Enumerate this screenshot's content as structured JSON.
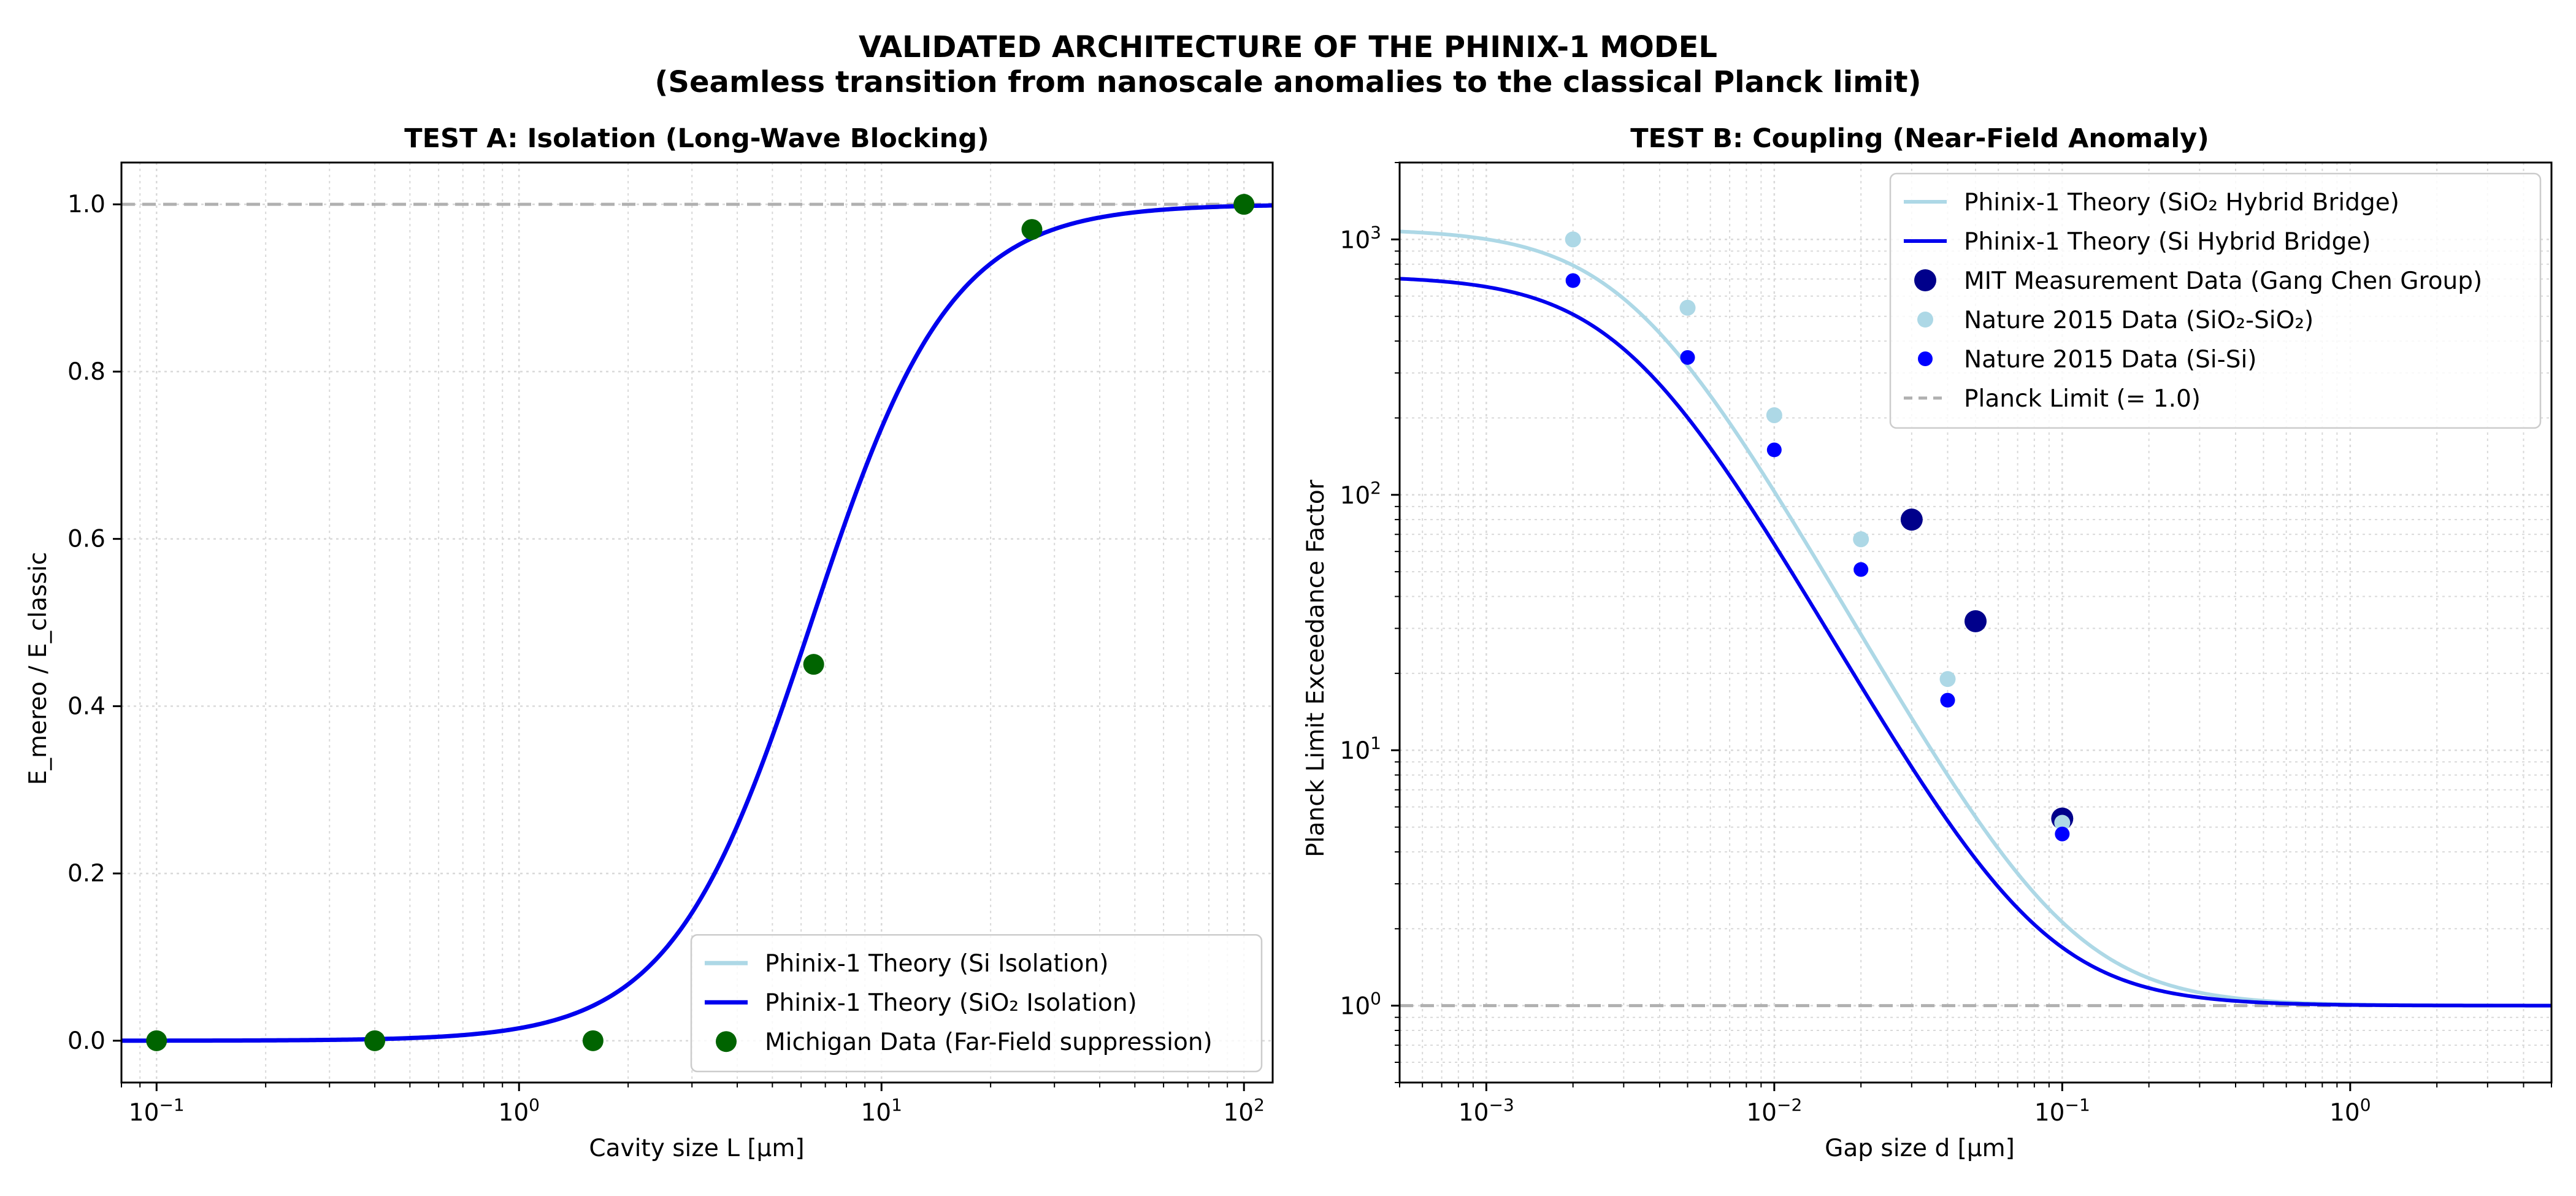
{
  "figure": {
    "title_line1": "VALIDATED ARCHITECTURE OF THE PHINIX-1 MODEL",
    "title_line2": "(Seamless transition from nanoscale anomalies to the classical Planck limit)"
  },
  "chart_data": [
    {
      "type": "line",
      "title": "TEST A: Isolation (Long-Wave Blocking)",
      "xlabel": "Cavity size L [μm]",
      "ylabel": "E_mereo / E_classic",
      "xscale": "log",
      "xlim": [
        0.08,
        120
      ],
      "ylim": [
        -0.05,
        1.05
      ],
      "xticks": [
        {
          "v": 0.1,
          "base": "10",
          "exp": "−1"
        },
        {
          "v": 1,
          "base": "10",
          "exp": "0"
        },
        {
          "v": 10,
          "base": "10",
          "exp": "1"
        },
        {
          "v": 100,
          "base": "10",
          "exp": "2"
        }
      ],
      "yticks": [
        {
          "v": 0.0,
          "label": "0.0"
        },
        {
          "v": 0.2,
          "label": "0.2"
        },
        {
          "v": 0.4,
          "label": "0.4"
        },
        {
          "v": 0.6,
          "label": "0.6"
        },
        {
          "v": 0.8,
          "label": "0.8"
        },
        {
          "v": 1.0,
          "label": "1.0"
        }
      ],
      "grid": true,
      "reference_line": {
        "y": 1.0,
        "color": "#b0b0b0",
        "style": "dashed"
      },
      "legend_position": "lower-right",
      "series": [
        {
          "name": "Phinix-1 Theory (Si Isolation)",
          "kind": "line",
          "color": "#add8e6",
          "width": 7,
          "logistic": {
            "center": 6.4,
            "steepness": 5.2
          }
        },
        {
          "name": "Phinix-1 Theory (SiO₂ Isolation)",
          "kind": "line",
          "color": "#0000ee",
          "width": 7,
          "logistic": {
            "center": 6.4,
            "steepness": 5.2
          }
        },
        {
          "name": "Michigan Data (Far-Field suppression)",
          "kind": "scatter",
          "color": "#006400",
          "radius": 17,
          "x": [
            0.1,
            0.4,
            1.6,
            6.5,
            26,
            100
          ],
          "y": [
            0.0,
            0.0,
            0.0,
            0.45,
            0.97,
            1.0
          ]
        }
      ]
    },
    {
      "type": "line",
      "title": "TEST B: Coupling (Near-Field Anomaly)",
      "xlabel": "Gap size d [μm]",
      "ylabel": "Planck Limit Exceedance Factor",
      "xscale": "log",
      "yscale": "log",
      "xlim": [
        0.0005,
        5
      ],
      "ylim": [
        0.5,
        2000
      ],
      "xticks": [
        {
          "v": 0.001,
          "base": "10",
          "exp": "−3"
        },
        {
          "v": 0.01,
          "base": "10",
          "exp": "−2"
        },
        {
          "v": 0.1,
          "base": "10",
          "exp": "−1"
        },
        {
          "v": 1,
          "base": "10",
          "exp": "0"
        }
      ],
      "yticks": [
        {
          "v": 1,
          "base": "10",
          "exp": "0"
        },
        {
          "v": 10,
          "base": "10",
          "exp": "1"
        },
        {
          "v": 100,
          "base": "10",
          "exp": "2"
        },
        {
          "v": 1000,
          "base": "10",
          "exp": "3"
        }
      ],
      "grid": true,
      "reference_line": {
        "y": 1.0,
        "color": "#b0b0b0",
        "style": "dashed"
      },
      "legend_position": "upper-right",
      "series": [
        {
          "name": "Phinix-1 Theory (SiO₂ Hybrid Bridge)",
          "kind": "line",
          "color": "#add8e6",
          "width": 6,
          "model": {
            "amplitude": 1100,
            "d0": 0.0032,
            "power": 2
          }
        },
        {
          "name": "Phinix-1 Theory (Si Hybrid Bridge)",
          "kind": "line",
          "color": "#0000ee",
          "width": 6,
          "model": {
            "amplitude": 720,
            "d0": 0.0031,
            "power": 2
          }
        },
        {
          "name": "MIT Measurement Data (Gang Chen Group)",
          "kind": "scatter",
          "color": "#00008b",
          "radius": 18,
          "x": [
            0.03,
            0.05,
            0.1
          ],
          "y": [
            80,
            32,
            5.4
          ]
        },
        {
          "name": "Nature 2015 Data (SiO₂-SiO₂)",
          "kind": "scatter",
          "color": "#add8e6",
          "radius": 13,
          "x": [
            0.002,
            0.005,
            0.01,
            0.02,
            0.04,
            0.1
          ],
          "y": [
            1000,
            540,
            205,
            67,
            19,
            5.2
          ]
        },
        {
          "name": "Nature 2015 Data (Si-Si)",
          "kind": "scatter",
          "color": "#0000ff",
          "radius": 12,
          "x": [
            0.002,
            0.005,
            0.01,
            0.02,
            0.04,
            0.1
          ],
          "y": [
            690,
            345,
            150,
            51,
            15.7,
            4.7
          ]
        },
        {
          "name": "Planck Limit (= 1.0)",
          "kind": "refline",
          "color": "#b0b0b0"
        }
      ]
    }
  ]
}
